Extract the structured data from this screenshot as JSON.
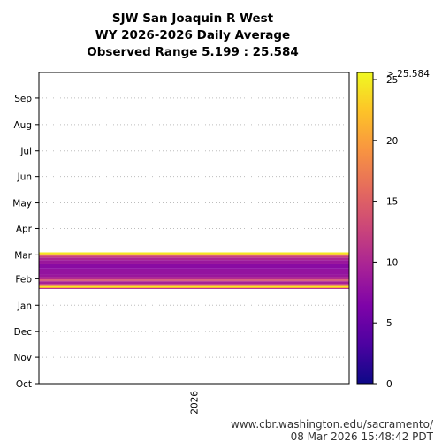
{
  "chart_data": {
    "type": "heatmap",
    "title_lines": [
      "SJW San Joaquin R West",
      "WY 2026-2026 Daily Average",
      "Observed Range 5.199 : 25.584"
    ],
    "x_categories": [
      "2026"
    ],
    "y_months": [
      "Oct",
      "Nov",
      "Dec",
      "Jan",
      "Feb",
      "Mar",
      "Apr",
      "May",
      "Jun",
      "Jul",
      "Aug",
      "Sep"
    ],
    "observed_min": 5.199,
    "observed_max": 25.584,
    "colorbar": {
      "min": 0,
      "max": 25.584,
      "ticks": [
        0,
        5,
        10,
        15,
        20,
        25
      ],
      "top_label": "> 25.584",
      "colormap": "plasma"
    },
    "bands": [
      {
        "start_day": 111,
        "end_day": 112,
        "value": 10.5
      },
      {
        "start_day": 112,
        "end_day": 113,
        "value": 21
      },
      {
        "start_day": 113,
        "end_day": 115,
        "value": 24.5
      },
      {
        "start_day": 115,
        "end_day": 116,
        "value": 19
      },
      {
        "start_day": 116,
        "end_day": 117,
        "value": 12
      },
      {
        "start_day": 117,
        "end_day": 120,
        "value": 9.5
      },
      {
        "start_day": 120,
        "end_day": 121,
        "value": 12
      },
      {
        "start_day": 121,
        "end_day": 122,
        "value": 16
      },
      {
        "start_day": 122,
        "end_day": 125,
        "value": 10.5
      },
      {
        "start_day": 125,
        "end_day": 128,
        "value": 8.5
      },
      {
        "start_day": 128,
        "end_day": 135,
        "value": 8
      },
      {
        "start_day": 135,
        "end_day": 140,
        "value": 7.2
      },
      {
        "start_day": 140,
        "end_day": 145,
        "value": 8.5
      },
      {
        "start_day": 145,
        "end_day": 148,
        "value": 10
      },
      {
        "start_day": 148,
        "end_day": 150,
        "value": 12.5
      },
      {
        "start_day": 150,
        "end_day": 151,
        "value": 16
      },
      {
        "start_day": 151,
        "end_day": 152,
        "value": 21
      },
      {
        "start_day": 152,
        "end_day": 154,
        "value": 24.5
      }
    ]
  },
  "footer": {
    "source_url": "www.cbr.washington.edu/sacramento/",
    "timestamp": "08 Mar 2026 15:48:42 PDT"
  }
}
